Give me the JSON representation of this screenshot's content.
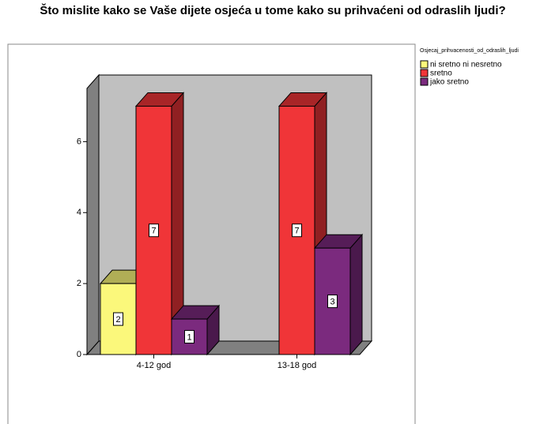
{
  "chart_data": {
    "type": "bar3d",
    "title": "Što mislite kako se Vaše dijete osjeća u tome kako su prihvaćeni od odraslih ljudi?",
    "legend_title": "Osjecaj_prihvacenosti_od_odraslih_ljudi",
    "legend": "right",
    "categories": [
      "4-12 god",
      "13-18 god"
    ],
    "series": [
      {
        "name": "ni sretno ni nesretno",
        "color": "#fbf87b",
        "values": [
          2,
          null
        ]
      },
      {
        "name": "sretno",
        "color": "#f03538",
        "values": [
          7,
          7
        ]
      },
      {
        "name": "jako sretno",
        "color": "#7b2a7e",
        "values": [
          1,
          3
        ]
      }
    ],
    "ylim": [
      0,
      7.5
    ],
    "yticks": [
      0,
      2,
      4,
      6
    ]
  }
}
